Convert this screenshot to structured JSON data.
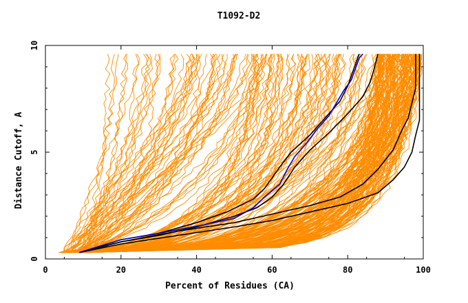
{
  "chart_data": {
    "type": "line",
    "title": "T1092-D2",
    "xlabel": "Percent of Residues (CA)",
    "ylabel": "Distance Cutoff, A",
    "xlim": [
      0,
      100
    ],
    "ylim": [
      0,
      10
    ],
    "x_ticks": [
      "0",
      "20",
      "40",
      "60",
      "80",
      "100"
    ],
    "y_ticks": [
      "0",
      "5",
      "10"
    ],
    "grid": false,
    "colors": {
      "background_models": "#ff8c00",
      "highlight": "#000000",
      "reference": "#0000cc"
    },
    "highlighted_series": [
      {
        "color": "#000000",
        "points": [
          [
            9,
            0.3
          ],
          [
            20,
            0.9
          ],
          [
            30,
            1.2
          ],
          [
            40,
            1.7
          ],
          [
            48,
            2.2
          ],
          [
            55,
            2.8
          ],
          [
            58,
            3.3
          ],
          [
            60,
            3.8
          ],
          [
            62,
            4.3
          ],
          [
            65,
            5.0
          ],
          [
            70,
            5.8
          ],
          [
            74,
            6.6
          ],
          [
            78,
            7.4
          ],
          [
            80,
            8.1
          ],
          [
            81,
            8.6
          ],
          [
            82,
            9.1
          ],
          [
            83,
            9.6
          ]
        ]
      },
      {
        "color": "#000000",
        "points": [
          [
            9,
            0.3
          ],
          [
            20,
            0.8
          ],
          [
            30,
            1.1
          ],
          [
            40,
            1.5
          ],
          [
            50,
            2.0
          ],
          [
            56,
            2.4
          ],
          [
            60,
            2.9
          ],
          [
            63,
            3.5
          ],
          [
            66,
            4.3
          ],
          [
            70,
            5.1
          ],
          [
            75,
            5.9
          ],
          [
            80,
            6.8
          ],
          [
            84,
            7.6
          ],
          [
            86,
            8.3
          ],
          [
            87,
            8.9
          ],
          [
            88,
            9.6
          ]
        ]
      },
      {
        "color": "#000000",
        "points": [
          [
            9,
            0.3
          ],
          [
            20,
            0.8
          ],
          [
            35,
            1.3
          ],
          [
            50,
            1.7
          ],
          [
            60,
            2.1
          ],
          [
            70,
            2.5
          ],
          [
            78,
            2.9
          ],
          [
            84,
            3.5
          ],
          [
            88,
            4.2
          ],
          [
            92,
            5.1
          ],
          [
            94,
            5.9
          ],
          [
            96,
            6.6
          ],
          [
            97,
            7.3
          ],
          [
            98,
            8.0
          ],
          [
            98,
            8.8
          ],
          [
            98,
            9.6
          ]
        ]
      },
      {
        "color": "#000000",
        "points": [
          [
            9,
            0.3
          ],
          [
            20,
            0.7
          ],
          [
            35,
            1.1
          ],
          [
            50,
            1.5
          ],
          [
            60,
            1.8
          ],
          [
            70,
            2.2
          ],
          [
            80,
            2.6
          ],
          [
            88,
            3.1
          ],
          [
            92,
            3.7
          ],
          [
            95,
            4.3
          ],
          [
            97,
            5.0
          ],
          [
            98,
            5.8
          ],
          [
            99,
            6.5
          ],
          [
            99,
            7.3
          ],
          [
            99,
            8.2
          ],
          [
            99,
            9.0
          ],
          [
            99,
            9.6
          ]
        ]
      },
      {
        "color": "#0000cc",
        "points": [
          [
            9,
            0.3
          ],
          [
            20,
            0.9
          ],
          [
            30,
            1.2
          ],
          [
            42,
            1.6
          ],
          [
            50,
            1.9
          ],
          [
            55,
            2.4
          ],
          [
            58,
            2.9
          ],
          [
            62,
            3.5
          ],
          [
            64,
            4.2
          ],
          [
            66,
            4.8
          ],
          [
            69,
            5.4
          ],
          [
            72,
            6.1
          ],
          [
            75,
            6.7
          ],
          [
            77,
            7.3
          ],
          [
            79,
            7.9
          ],
          [
            81,
            8.4
          ],
          [
            82,
            8.9
          ],
          [
            83,
            9.4
          ],
          [
            84,
            9.6
          ]
        ]
      }
    ]
  }
}
